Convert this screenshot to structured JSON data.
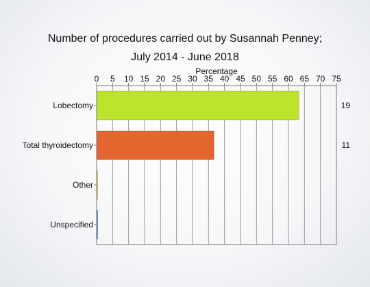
{
  "chart_data": {
    "type": "bar",
    "orientation": "horizontal",
    "title_lines": [
      "Number of procedures carried out by Susannah Penney;",
      "July 2014 - June 2018"
    ],
    "xlabel": "Percentage",
    "xlim": [
      0,
      75
    ],
    "x_ticks": [
      0,
      5,
      10,
      15,
      20,
      25,
      30,
      35,
      40,
      45,
      50,
      55,
      60,
      65,
      70,
      75
    ],
    "grid": true,
    "categories": [
      "Lobectomy",
      "Total thyroidectomy",
      "Other",
      "Unspecified"
    ],
    "values": [
      63.3,
      36.7,
      0,
      0
    ],
    "counts": [
      "19",
      "11",
      "",
      ""
    ],
    "colors": [
      "#bde32c",
      "#e2662e",
      "#d9c23a",
      "#3a6fb0"
    ]
  }
}
